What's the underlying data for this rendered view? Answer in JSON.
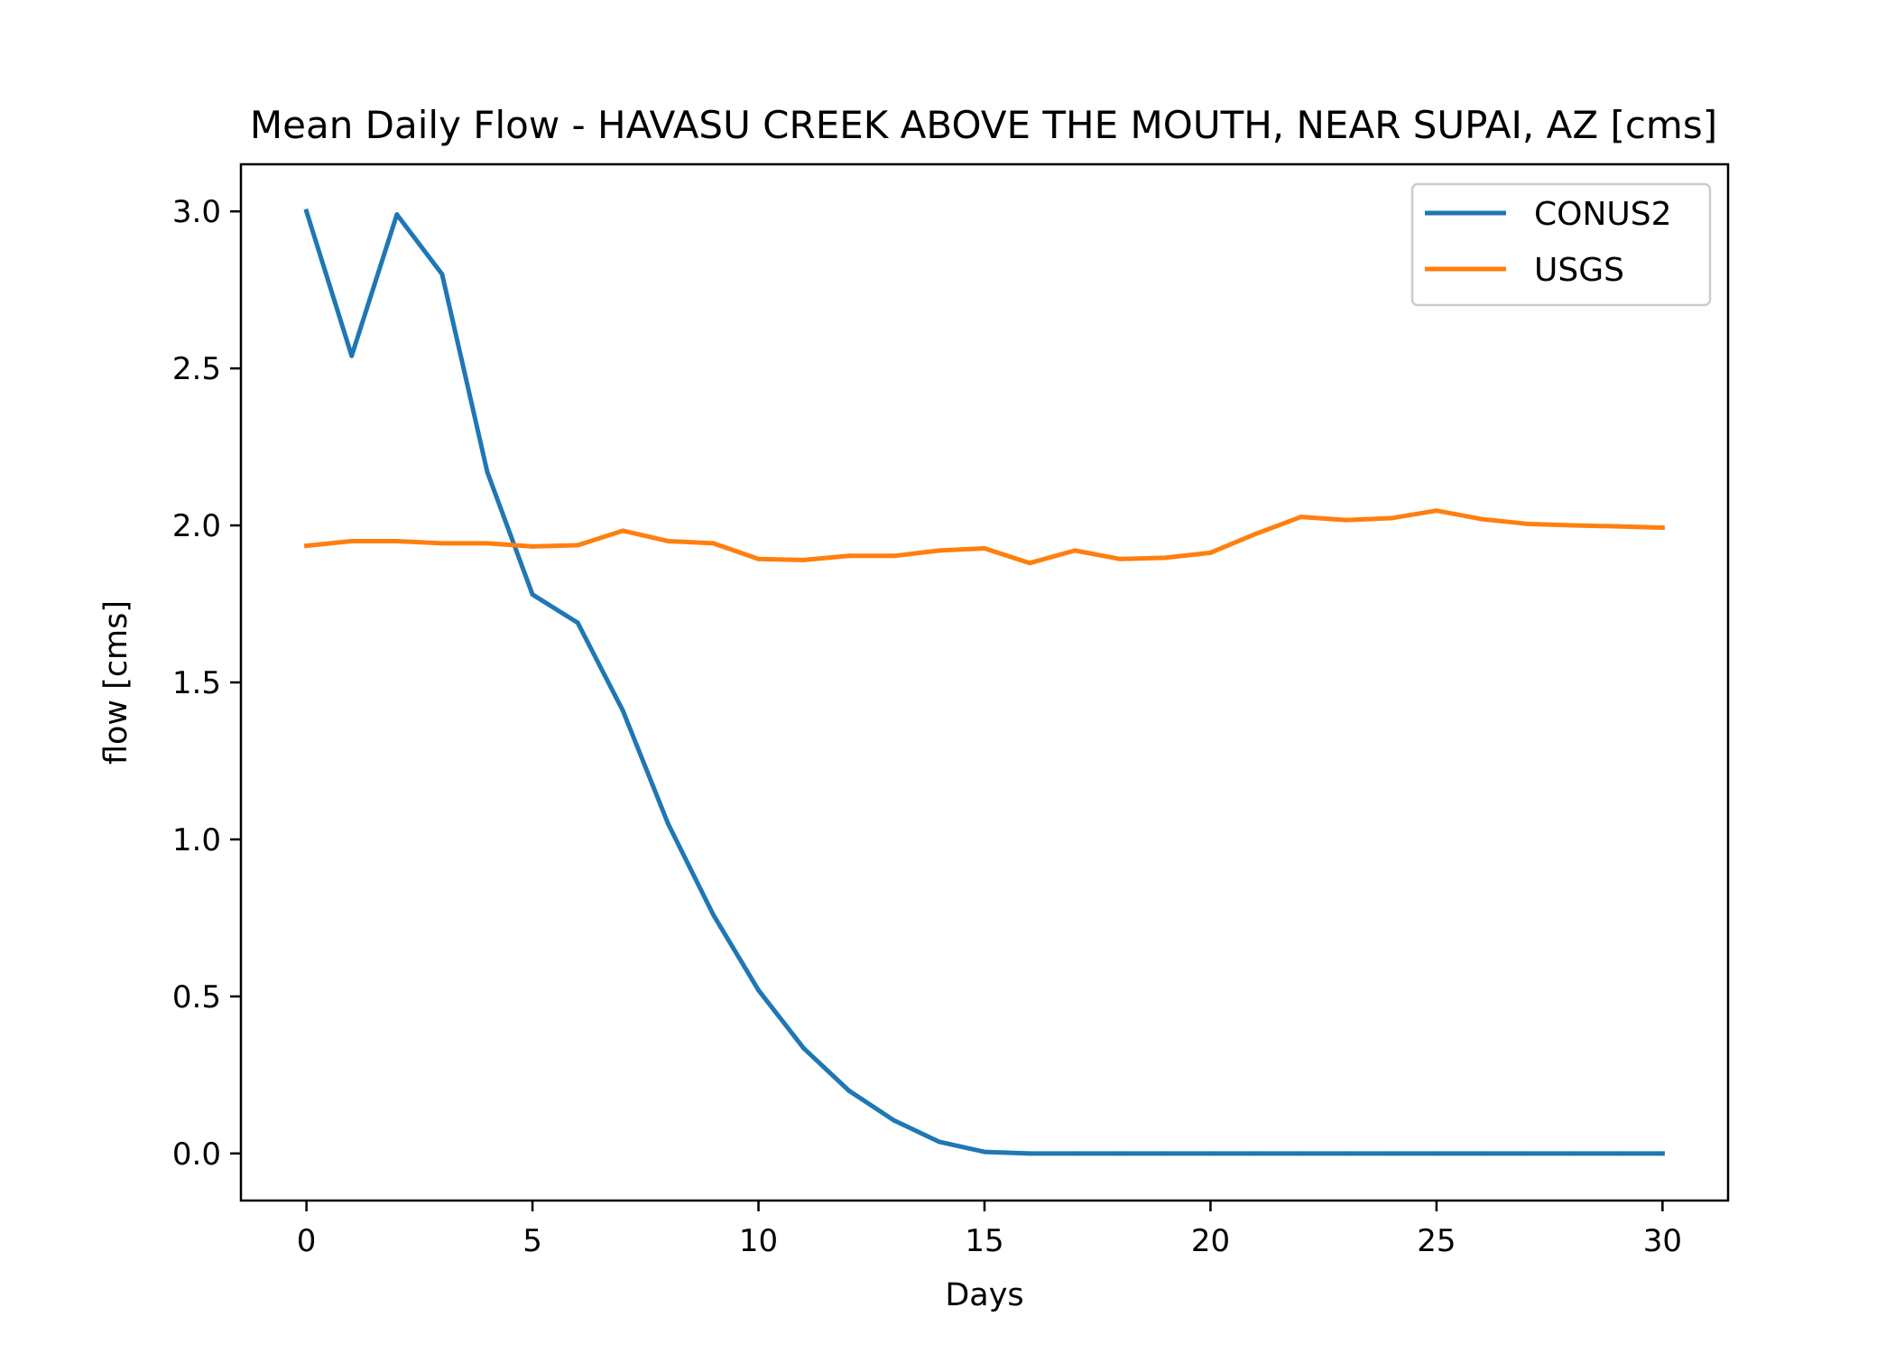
{
  "chart_data": {
    "type": "line",
    "title": "Mean Daily Flow - HAVASU CREEK ABOVE THE MOUTH, NEAR SUPAI, AZ [cms]",
    "xlabel": "Days",
    "ylabel": "flow [cms]",
    "xlim": [
      -1.45,
      31.45
    ],
    "ylim": [
      -0.15,
      3.15
    ],
    "xticks": [
      0,
      5,
      10,
      15,
      20,
      25,
      30
    ],
    "xtick_labels": [
      "0",
      "5",
      "10",
      "15",
      "20",
      "25",
      "30"
    ],
    "yticks": [
      0.0,
      0.5,
      1.0,
      1.5,
      2.0,
      2.5,
      3.0
    ],
    "ytick_labels": [
      "0.0",
      "0.5",
      "1.0",
      "1.5",
      "2.0",
      "2.5",
      "3.0"
    ],
    "grid": false,
    "legend_position": "top-right",
    "x": [
      0,
      1,
      2,
      3,
      4,
      5,
      6,
      7,
      8,
      9,
      10,
      11,
      12,
      13,
      14,
      15,
      16,
      17,
      18,
      19,
      20,
      21,
      22,
      23,
      24,
      25,
      26,
      27,
      28,
      29,
      30
    ],
    "series": [
      {
        "name": "CONUS2",
        "color": "#1f77b4",
        "values": [
          3.0,
          2.54,
          2.99,
          2.8,
          2.17,
          1.78,
          1.69,
          1.41,
          1.05,
          0.76,
          0.52,
          0.335,
          0.2,
          0.105,
          0.037,
          0.005,
          0.0,
          0.0,
          0.0,
          0.0,
          0.0,
          0.0,
          0.0,
          0.0,
          0.0,
          0.0,
          0.0,
          0.0,
          0.0,
          0.0,
          0.0
        ]
      },
      {
        "name": "USGS",
        "color": "#ff7f0e",
        "values": [
          1.935,
          1.95,
          1.95,
          1.943,
          1.943,
          1.933,
          1.937,
          1.983,
          1.95,
          1.943,
          1.893,
          1.89,
          1.903,
          1.903,
          1.92,
          1.927,
          1.88,
          1.92,
          1.893,
          1.897,
          1.913,
          1.973,
          2.027,
          2.017,
          2.023,
          2.047,
          2.02,
          2.005,
          2.0,
          1.997,
          1.993
        ]
      }
    ]
  }
}
